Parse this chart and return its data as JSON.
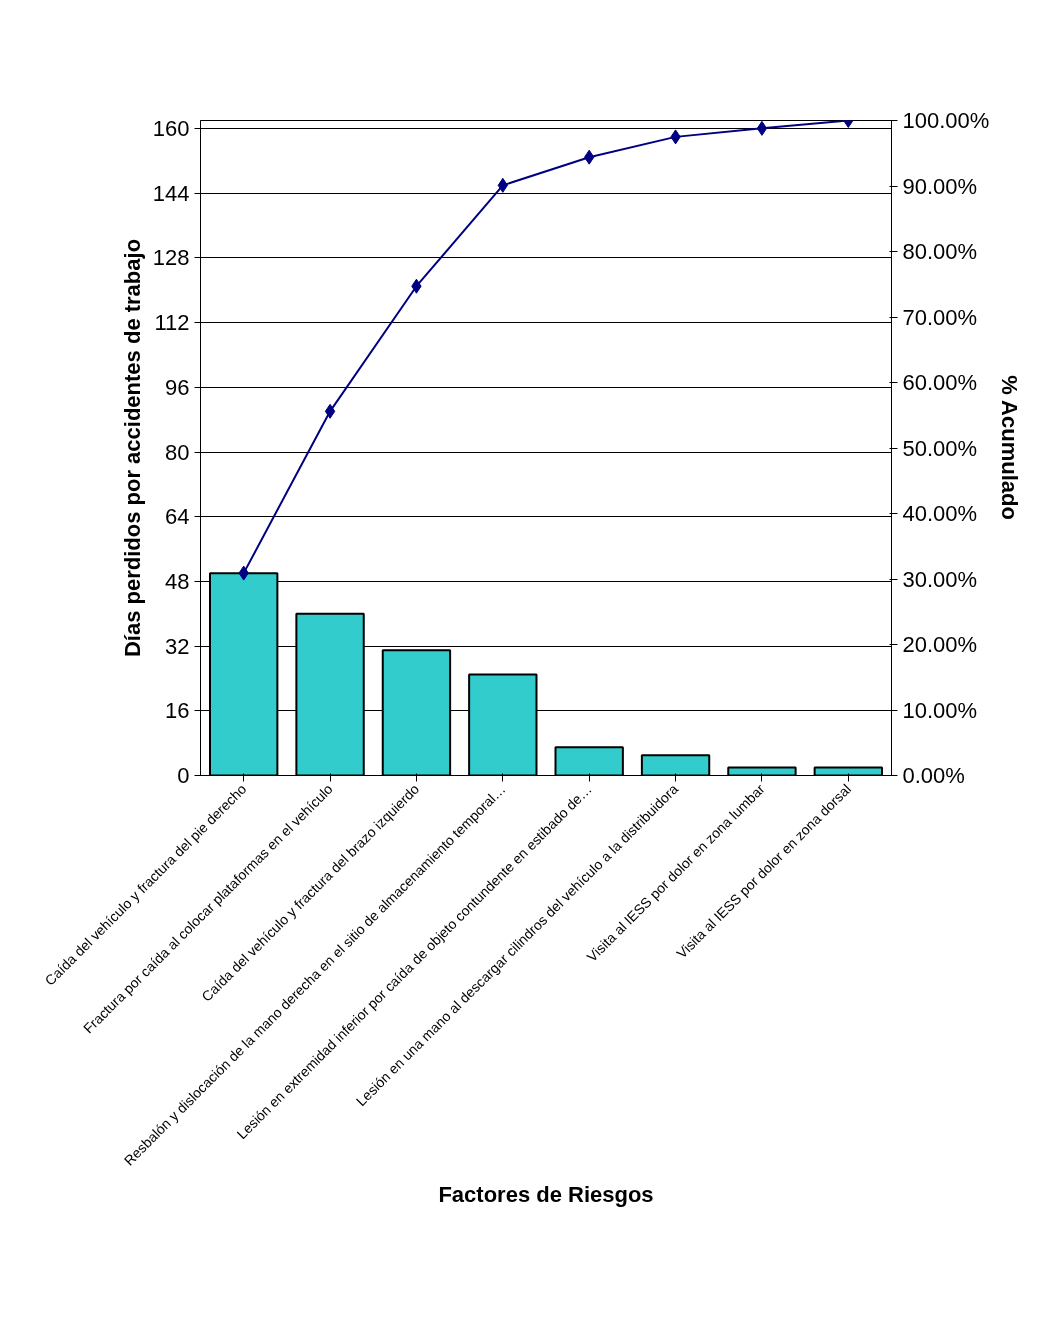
{
  "chart_data": {
    "type": "bar",
    "xlabel": "Factores de Riesgos",
    "ylabel": "Días perdidos por accidentes de trabajo",
    "y2label": "% Acumulado",
    "categories": [
      "Caída del vehículo y fractura del pie derecho",
      "Fractura por caída al colocar plataformas en el vehículo",
      "Caída del vehículo y fractura del brazo izquierdo",
      "Resbalón y dislocación de la mano derecha en el sitio de almacenamiento temporal…",
      "Lesión en extremidad inferior por caída de objeto contundente en estibado de…",
      "Lesión en una mano al descargar cilindros del vehículo a la distribuidora",
      "Visita al IESS por dolor en zona lumbar",
      "Visita al IESS por dolor en zona dorsal"
    ],
    "series": [
      {
        "color": "#33cccc",
        "values": [
          50,
          40,
          31,
          25,
          7,
          5,
          2,
          2
        ]
      },
      {
        "type": "line",
        "axis": "y2",
        "color": "#000080",
        "marker": "diamond",
        "values": [
          30.9,
          55.6,
          74.7,
          90.1,
          94.4,
          97.5,
          98.8,
          100
        ]
      }
    ],
    "ylim": [
      0,
      162
    ],
    "yticks": [
      0,
      16,
      32,
      48,
      64,
      80,
      96,
      112,
      128,
      144,
      160
    ],
    "y2lim": [
      0,
      100
    ],
    "y2ticks": [
      {
        "value": 0,
        "label": "0.00%"
      },
      {
        "value": 10,
        "label": "10.00%"
      },
      {
        "value": 20,
        "label": "20.00%"
      },
      {
        "value": 30,
        "label": "30.00%"
      },
      {
        "value": 40,
        "label": "40.00%"
      },
      {
        "value": 50,
        "label": "50.00%"
      },
      {
        "value": 60,
        "label": "60.00%"
      },
      {
        "value": 70,
        "label": "70.00%"
      },
      {
        "value": 80,
        "label": "80.00%"
      },
      {
        "value": 90,
        "label": "90.00%"
      },
      {
        "value": 100,
        "label": "100.00%"
      }
    ],
    "grid": "y"
  }
}
